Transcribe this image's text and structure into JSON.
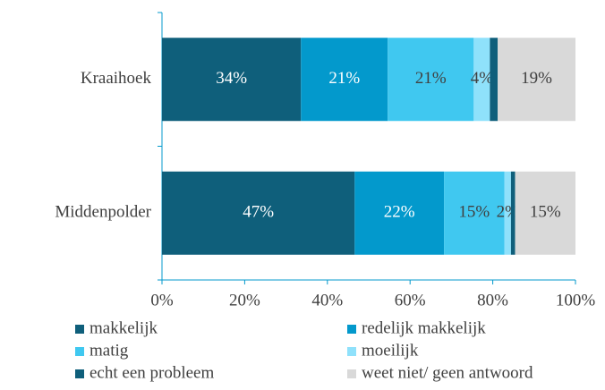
{
  "chart_data": {
    "type": "stacked-bar-horizontal",
    "categories": [
      "Kraaihoek",
      "Middenpolder"
    ],
    "series": [
      {
        "name": "makkelijk",
        "color": "#0f5f7b",
        "values": [
          33.6,
          46.6
        ],
        "value_labels": [
          "34%",
          "47%"
        ]
      },
      {
        "name": "redelijk makkelijk",
        "color": "#0399cc",
        "values": [
          21.0,
          21.6
        ],
        "value_labels": [
          "21%",
          "22%"
        ]
      },
      {
        "name": "matig",
        "color": "#40c8f0",
        "values": [
          20.8,
          14.6
        ],
        "value_labels": [
          "21%",
          "15%"
        ]
      },
      {
        "name": "moeilijk",
        "color": "#8fe1fb",
        "values": [
          3.9,
          1.6
        ],
        "value_labels": [
          "4%",
          "2%"
        ]
      },
      {
        "name": "echt een probleem",
        "color": "#0f5f7b",
        "values": [
          1.9,
          1.0
        ],
        "value_labels": [
          null,
          null
        ]
      },
      {
        "name": "weet niet/ geen antwoord",
        "color": "#d9d9d9",
        "values": [
          18.8,
          14.6
        ],
        "value_labels": [
          "19%",
          "15%"
        ]
      }
    ],
    "xlim": [
      0,
      100
    ],
    "xticks": [
      {
        "value": 0,
        "label": "0%"
      },
      {
        "value": 20,
        "label": "20%"
      },
      {
        "value": 40,
        "label": "40%"
      },
      {
        "value": 60,
        "label": "60%"
      },
      {
        "value": 80,
        "label": "80%"
      },
      {
        "value": 100,
        "label": "100%"
      }
    ],
    "legend": "bottom"
  }
}
